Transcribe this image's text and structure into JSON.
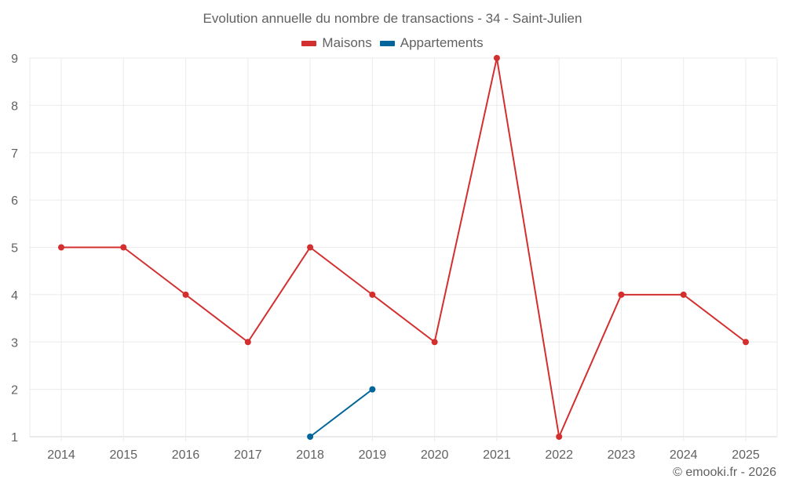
{
  "chart_data": {
    "type": "line",
    "title": "Evolution annuelle du nombre de transactions - 34 - Saint-Julien",
    "xlabel": "",
    "ylabel": "",
    "categories": [
      "2014",
      "2015",
      "2016",
      "2017",
      "2018",
      "2019",
      "2020",
      "2021",
      "2022",
      "2023",
      "2024",
      "2025"
    ],
    "series": [
      {
        "name": "Maisons",
        "color": "#d32f2f",
        "values": [
          5,
          5,
          4,
          3,
          5,
          4,
          3,
          9,
          1,
          4,
          4,
          3
        ]
      },
      {
        "name": "Appartements",
        "color": "#00659b",
        "values": [
          null,
          null,
          null,
          null,
          1,
          2,
          null,
          null,
          null,
          null,
          null,
          null
        ]
      }
    ],
    "yticks": [
      1,
      2,
      3,
      4,
      5,
      6,
      7,
      8,
      9
    ],
    "ylim": [
      1,
      9
    ],
    "grid": true,
    "legend_position": "top"
  },
  "legend": {
    "items": [
      {
        "label": "Maisons",
        "color": "#d32f2f"
      },
      {
        "label": "Appartements",
        "color": "#00659b"
      }
    ]
  },
  "credit": "© emooki.fr - 2026"
}
